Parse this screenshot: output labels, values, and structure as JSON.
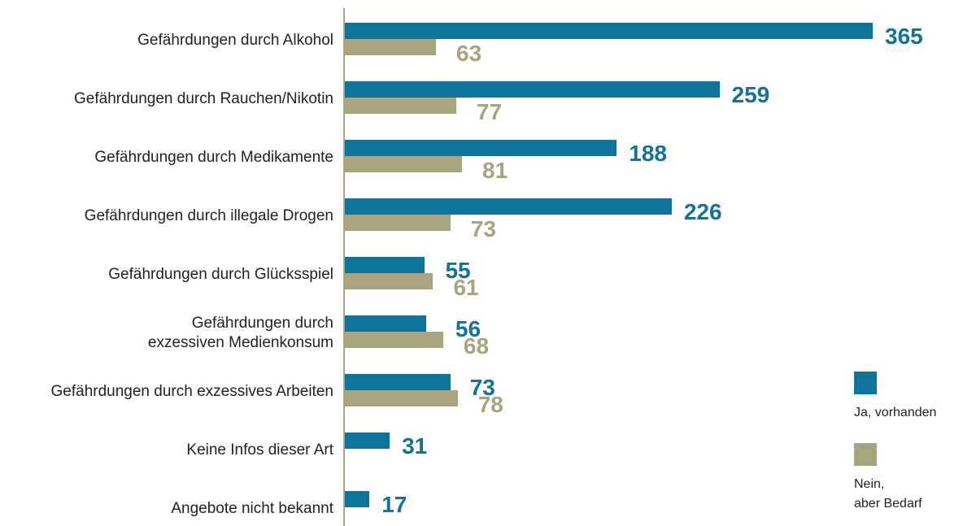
{
  "chart_data": {
    "type": "barh",
    "categories": [
      "Gefährdungen durch Alkohol",
      "Gefährdungen durch Rauchen/Nikotin",
      "Gefährdungen durch Medikamente",
      "Gefährdungen durch illegale Drogen",
      "Gefährdungen durch Glücksspiel",
      "Gefährdungen durch\nexzessiven Medienkonsum",
      "Gefährdungen durch exzessives Arbeiten",
      "Keine Infos dieser Art",
      "Angebote nicht bekannt"
    ],
    "series": [
      {
        "name": "Ja, vorhanden",
        "color": "#0f739c",
        "values": [
          365,
          259,
          188,
          226,
          55,
          56,
          73,
          31,
          17
        ]
      },
      {
        "name": "Nein,\naber Bedarf",
        "color": "#a9a47e",
        "values": [
          63,
          77,
          81,
          73,
          61,
          68,
          78,
          null,
          null
        ]
      }
    ],
    "legend": "right"
  }
}
